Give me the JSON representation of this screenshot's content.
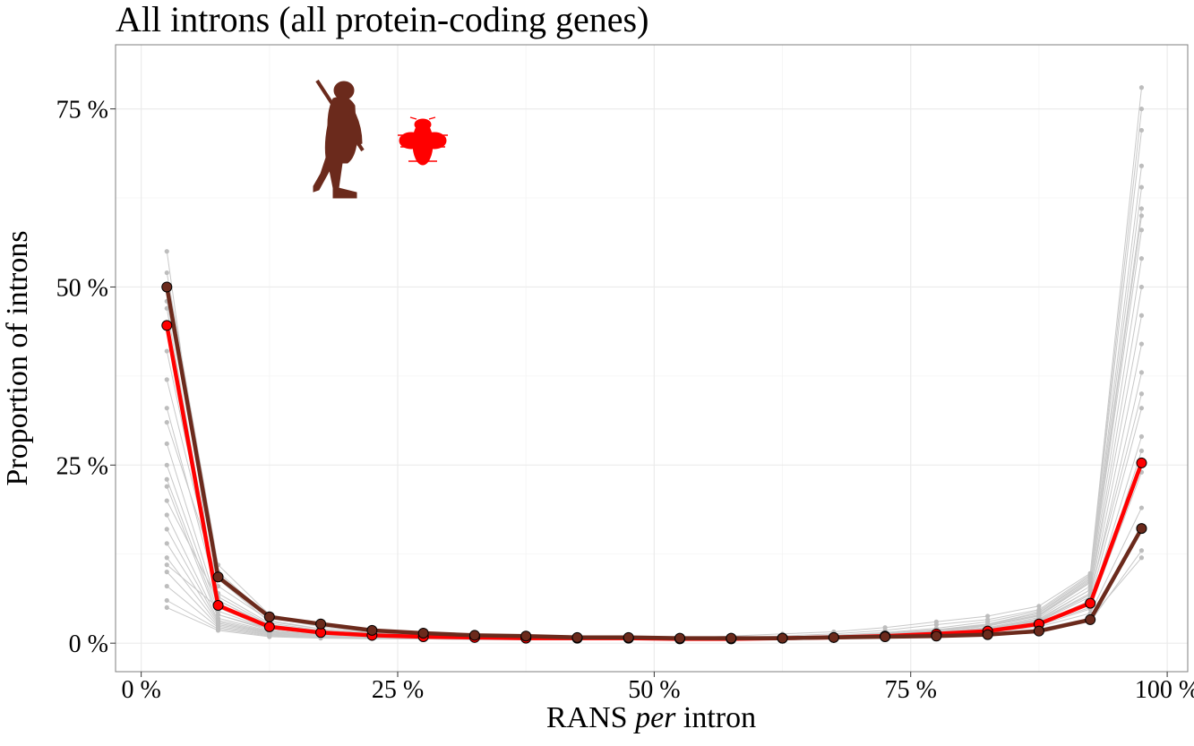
{
  "chart_data": {
    "type": "line",
    "title": "All introns (all protein-coding genes)",
    "xlabel_parts": [
      "RANS ",
      "per",
      " intron"
    ],
    "ylabel": "Proportion of introns",
    "x_ticks": [
      0,
      25,
      50,
      75,
      100
    ],
    "x_tick_labels": [
      "0 %",
      "25 %",
      "50 %",
      "75 %",
      "100 %"
    ],
    "y_ticks": [
      0,
      25,
      50,
      75
    ],
    "y_tick_labels": [
      "0 %",
      "25 %",
      "50 %",
      "75 %"
    ],
    "xlim": [
      -2.5,
      102
    ],
    "ylim": [
      -4,
      84
    ],
    "grid": true,
    "x": [
      2.5,
      7.5,
      12.5,
      17.5,
      22.5,
      27.5,
      32.5,
      37.5,
      42.5,
      47.5,
      52.5,
      57.5,
      62.5,
      67.5,
      72.5,
      77.5,
      82.5,
      87.5,
      92.5,
      97.5
    ],
    "series": [
      {
        "name": "",
        "color": "#ff0000",
        "values": [
          44.6,
          5.3,
          2.3,
          1.5,
          1.1,
          0.9,
          0.8,
          0.7,
          0.7,
          0.7,
          0.6,
          0.6,
          0.7,
          0.8,
          1.0,
          1.3,
          1.7,
          2.7,
          5.6,
          25.3
        ]
      },
      {
        "name": "",
        "color": "#6b2a1c",
        "values": [
          50.0,
          9.3,
          3.7,
          2.7,
          1.8,
          1.4,
          1.1,
          1.0,
          0.8,
          0.8,
          0.7,
          0.7,
          0.7,
          0.8,
          0.9,
          1.0,
          1.2,
          1.7,
          3.3,
          16.1
        ]
      }
    ],
    "background_series_color": "#c8c8c8",
    "background_series": [
      [
        55.0,
        4.0,
        2.0,
        1.3,
        1.0,
        0.8,
        0.7,
        0.7,
        0.6,
        0.6,
        0.6,
        0.6,
        0.6,
        0.7,
        0.8,
        1.0,
        1.3,
        2.0,
        3.5,
        12.0
      ],
      [
        47.0,
        6.0,
        2.5,
        1.6,
        1.2,
        1.0,
        0.8,
        0.7,
        0.7,
        0.7,
        0.7,
        0.7,
        0.7,
        0.8,
        1.0,
        1.2,
        1.5,
        2.3,
        4.2,
        19.0
      ],
      [
        41.0,
        7.0,
        2.8,
        1.8,
        1.3,
        1.1,
        0.9,
        0.8,
        0.8,
        0.8,
        0.7,
        0.7,
        0.8,
        0.9,
        1.1,
        1.4,
        1.8,
        2.7,
        5.0,
        24.0
      ],
      [
        37.0,
        8.0,
        3.2,
        2.0,
        1.5,
        1.2,
        1.0,
        0.9,
        0.8,
        0.8,
        0.8,
        0.8,
        0.9,
        1.0,
        1.2,
        1.5,
        1.9,
        2.9,
        5.5,
        29.0
      ],
      [
        33.0,
        6.5,
        2.6,
        1.7,
        1.3,
        1.0,
        0.9,
        0.8,
        0.8,
        0.7,
        0.7,
        0.8,
        0.8,
        0.9,
        1.1,
        1.4,
        1.8,
        2.8,
        6.0,
        33.0
      ],
      [
        28.0,
        5.0,
        2.2,
        1.4,
        1.1,
        0.9,
        0.8,
        0.7,
        0.7,
        0.7,
        0.7,
        0.7,
        0.8,
        0.9,
        1.1,
        1.4,
        1.8,
        3.0,
        6.5,
        38.0
      ],
      [
        25.0,
        4.5,
        2.0,
        1.3,
        1.0,
        0.9,
        0.8,
        0.7,
        0.7,
        0.7,
        0.7,
        0.7,
        0.8,
        0.9,
        1.1,
        1.4,
        1.9,
        3.2,
        7.0,
        42.0
      ],
      [
        23.0,
        4.0,
        1.8,
        1.2,
        1.0,
        0.8,
        0.7,
        0.7,
        0.6,
        0.6,
        0.6,
        0.7,
        0.8,
        0.9,
        1.1,
        1.4,
        2.0,
        3.3,
        7.5,
        46.0
      ],
      [
        22.0,
        3.5,
        1.7,
        1.1,
        0.9,
        0.8,
        0.7,
        0.6,
        0.6,
        0.6,
        0.6,
        0.7,
        0.7,
        0.9,
        1.1,
        1.5,
        2.1,
        3.4,
        7.5,
        50.0
      ],
      [
        18.0,
        3.2,
        1.6,
        1.1,
        0.9,
        0.8,
        0.7,
        0.6,
        0.6,
        0.6,
        0.6,
        0.7,
        0.8,
        0.9,
        1.2,
        1.6,
        2.2,
        3.6,
        8.0,
        54.0
      ],
      [
        16.0,
        3.0,
        1.5,
        1.0,
        0.8,
        0.7,
        0.7,
        0.6,
        0.6,
        0.6,
        0.6,
        0.7,
        0.8,
        1.0,
        1.2,
        1.7,
        2.4,
        3.8,
        8.5,
        58.0
      ],
      [
        14.0,
        2.8,
        1.4,
        1.0,
        0.8,
        0.7,
        0.6,
        0.6,
        0.6,
        0.6,
        0.6,
        0.7,
        0.8,
        1.0,
        1.3,
        1.8,
        2.5,
        4.0,
        8.8,
        61.0
      ],
      [
        12.0,
        2.6,
        1.3,
        0.9,
        0.8,
        0.7,
        0.6,
        0.6,
        0.6,
        0.6,
        0.6,
        0.7,
        0.8,
        1.0,
        1.3,
        1.8,
        2.6,
        4.2,
        9.0,
        64.0
      ],
      [
        10.0,
        2.4,
        1.2,
        0.9,
        0.7,
        0.6,
        0.6,
        0.6,
        0.6,
        0.6,
        0.6,
        0.7,
        0.8,
        1.0,
        1.4,
        1.9,
        2.7,
        4.3,
        9.2,
        67.0
      ],
      [
        8.0,
        2.2,
        1.1,
        0.8,
        0.7,
        0.6,
        0.6,
        0.5,
        0.5,
        0.6,
        0.6,
        0.7,
        0.8,
        1.1,
        1.5,
        2.1,
        3.0,
        4.5,
        9.4,
        72.0
      ],
      [
        6.0,
        2.0,
        1.0,
        0.8,
        0.7,
        0.6,
        0.5,
        0.5,
        0.5,
        0.6,
        0.6,
        0.8,
        1.0,
        1.3,
        1.8,
        2.6,
        3.3,
        4.7,
        9.6,
        75.0
      ],
      [
        5.0,
        1.8,
        0.9,
        0.7,
        0.6,
        0.6,
        0.5,
        0.5,
        0.5,
        0.6,
        0.7,
        1.0,
        1.3,
        1.6,
        2.2,
        3.0,
        3.8,
        5.2,
        9.8,
        78.0
      ],
      [
        52.0,
        11.0,
        4.0,
        2.6,
        1.8,
        1.4,
        1.1,
        1.0,
        0.9,
        0.8,
        0.8,
        0.8,
        0.8,
        0.8,
        0.9,
        1.0,
        1.2,
        1.6,
        3.0,
        13.0
      ],
      [
        48.0,
        10.0,
        3.6,
        2.3,
        1.6,
        1.3,
        1.0,
        0.9,
        0.8,
        0.8,
        0.7,
        0.7,
        0.7,
        0.8,
        0.9,
        1.0,
        1.3,
        1.8,
        3.4,
        16.0
      ],
      [
        31.0,
        9.0,
        3.0,
        2.0,
        1.4,
        1.1,
        0.9,
        0.8,
        0.8,
        0.7,
        0.7,
        0.7,
        0.8,
        0.9,
        1.0,
        1.3,
        1.7,
        2.5,
        4.8,
        27.0
      ],
      [
        20.0,
        6.0,
        2.4,
        1.5,
        1.1,
        0.9,
        0.8,
        0.7,
        0.7,
        0.7,
        0.7,
        0.7,
        0.8,
        0.9,
        1.1,
        1.5,
        2.0,
        3.1,
        6.8,
        35.0
      ],
      [
        11.0,
        5.0,
        2.0,
        1.3,
        1.0,
        0.8,
        0.7,
        0.7,
        0.6,
        0.6,
        0.6,
        0.7,
        0.8,
        1.0,
        1.3,
        1.7,
        2.4,
        3.9,
        8.6,
        60.0
      ]
    ],
    "icons": [
      "human-silhouette-icon",
      "fly-silhouette-icon"
    ],
    "icon_colors": {
      "human": "#6b2a1c",
      "fly": "#ff0000"
    }
  }
}
